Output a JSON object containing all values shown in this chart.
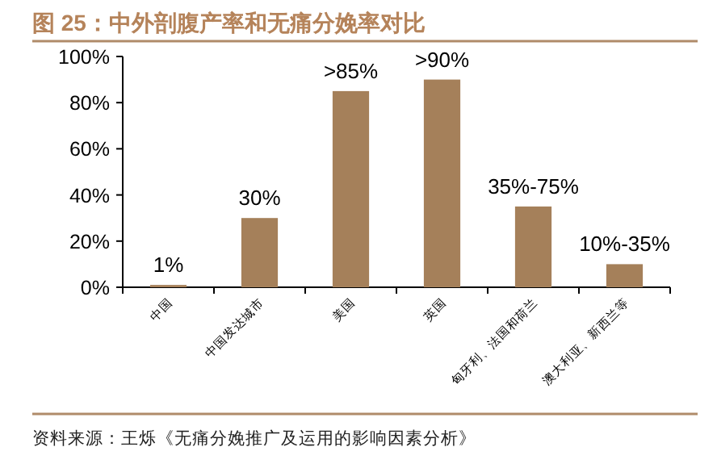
{
  "chart_data": {
    "type": "bar",
    "title": "图 25：中外剖腹产率和无痛分娩率对比",
    "categories": [
      "中国",
      "中国发达城市",
      "美国",
      "英国",
      "匈牙利、法国和荷兰",
      "澳大利亚、新西兰等"
    ],
    "values": [
      1,
      30,
      85,
      90,
      35,
      10
    ],
    "value_labels": [
      "1%",
      "30%",
      ">85%",
      ">90%",
      "35%-75%",
      "10%-35%"
    ],
    "color": "#a5805a",
    "ylim": [
      0,
      100
    ],
    "yticks": [
      {
        "value": 0,
        "label": "0%"
      },
      {
        "value": 20,
        "label": "20%"
      },
      {
        "value": 40,
        "label": "40%"
      },
      {
        "value": 60,
        "label": "60%"
      },
      {
        "value": 80,
        "label": "80%"
      },
      {
        "value": 100,
        "label": "100%"
      }
    ],
    "grid": false,
    "annotations": [
      "资料来源：王烁《无痛分娩推广及运用的影响因素分析》"
    ]
  }
}
